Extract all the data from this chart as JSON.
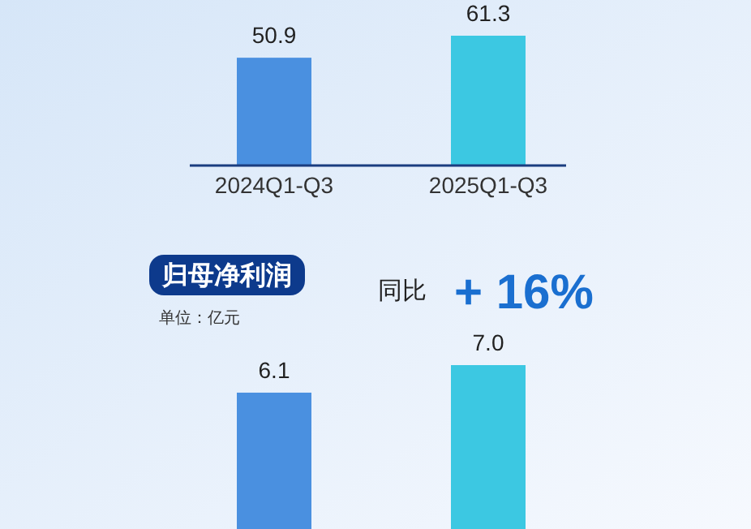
{
  "chart_data": [
    {
      "type": "bar",
      "categories": [
        "2024Q1-Q3",
        "2025Q1-Q3"
      ],
      "values": [
        50.9,
        61.3
      ],
      "colors": [
        "#4a90e0",
        "#3cc8e2"
      ],
      "data_labels": true
    },
    {
      "type": "bar",
      "title": "归母净利润",
      "subtitle": "单位：亿元",
      "annotations": [
        "同比",
        "+ 16%"
      ],
      "categories": [
        null,
        null
      ],
      "values": [
        6.1,
        7.0
      ],
      "value_labels": [
        "6.1",
        "7.0"
      ],
      "colors": [
        "#4a90e0",
        "#3cc8e2"
      ]
    }
  ]
}
